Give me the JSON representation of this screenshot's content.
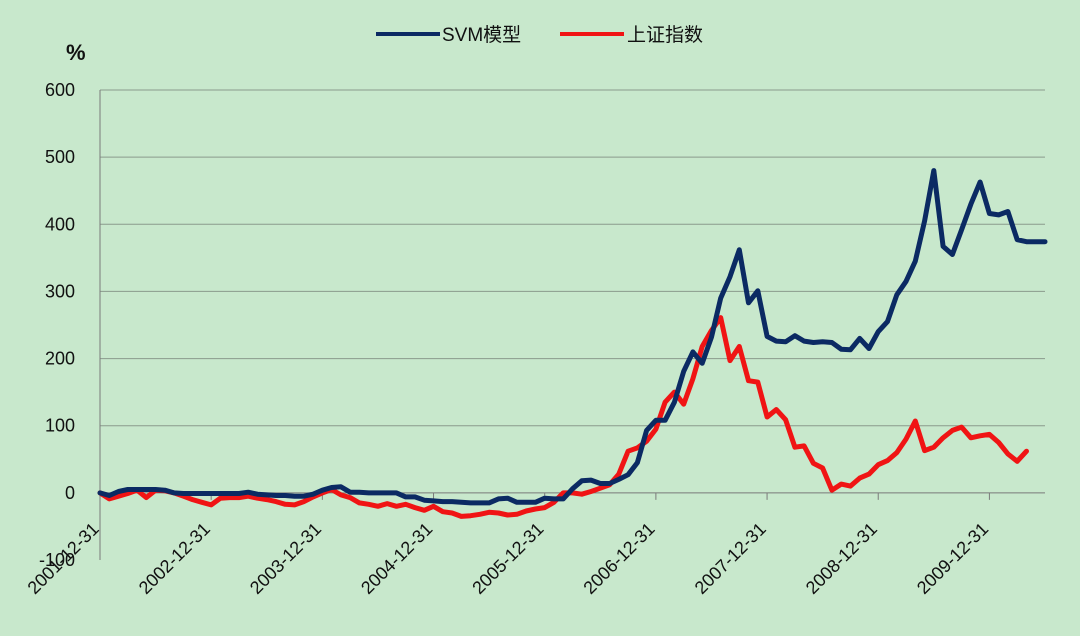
{
  "chart_data": {
    "type": "line",
    "unit_label": "%",
    "ylim": [
      -100,
      600
    ],
    "yticks": [
      -100,
      0,
      100,
      200,
      300,
      400,
      500,
      600
    ],
    "ytick_labels": [
      "-100",
      "0",
      "100",
      "200",
      "300",
      "400",
      "500",
      "600"
    ],
    "x_label_interval": 12,
    "x_labels": [
      "2001-12-31",
      "2002-12-31",
      "2003-12-31",
      "2004-12-31",
      "2005-12-31",
      "2006-12-31",
      "2007-12-31",
      "2008-12-31",
      "2009-12-31"
    ],
    "grid": true,
    "legend_position": "top-center",
    "colors": {
      "background": "#c8e8cc",
      "gridline": "#8a9a8c",
      "axis": "#7a7a7a"
    },
    "series": [
      {
        "name": "SVM模型",
        "color": "#0b2a63",
        "values": [
          0,
          -4,
          2,
          5,
          5,
          5,
          5,
          4,
          0,
          -1,
          -1,
          -1,
          -1,
          -1,
          -1,
          -1,
          1,
          -2,
          -3,
          -4,
          -4,
          -5,
          -5,
          -2,
          4,
          8,
          9,
          1,
          1,
          0,
          0,
          0,
          0,
          -6,
          -6,
          -11,
          -12,
          -13,
          -13,
          -14,
          -15,
          -15,
          -15,
          -9,
          -8,
          -14,
          -14,
          -14,
          -8,
          -9,
          -9,
          6,
          18,
          19,
          14,
          14,
          20,
          27,
          45,
          93,
          108,
          108,
          135,
          181,
          210,
          193,
          232,
          290,
          322,
          362,
          283,
          301,
          233,
          226,
          225,
          234,
          226,
          224,
          225,
          224,
          214,
          213,
          230,
          215,
          240,
          255,
          295,
          315,
          345,
          405,
          480,
          367,
          355,
          392,
          430,
          463,
          416,
          414,
          419,
          377,
          374,
          374,
          374
        ]
      },
      {
        "name": "上证指数",
        "color": "#f01414",
        "values": [
          0,
          -9,
          -5,
          -1,
          4,
          -7,
          4,
          3,
          0,
          -5,
          -10,
          -14,
          -18,
          -8,
          -7,
          -7,
          -5,
          -8,
          -10,
          -13,
          -17,
          -18,
          -13,
          -6,
          0,
          5,
          -3,
          -7,
          -15,
          -17,
          -20,
          -16,
          -20,
          -17,
          -22,
          -26,
          -20,
          -28,
          -30,
          -35,
          -34,
          -32,
          -29,
          -30,
          -33,
          -32,
          -27,
          -24,
          -22,
          -14,
          0,
          0,
          -2,
          2,
          7,
          12,
          28,
          62,
          67,
          77,
          95,
          135,
          150,
          132,
          170,
          218,
          242,
          261,
          197,
          218,
          167,
          165,
          113,
          124,
          109,
          68,
          70,
          44,
          37,
          4,
          13,
          10,
          22,
          28,
          42,
          48,
          60,
          80,
          107,
          63,
          68,
          82,
          93,
          98,
          82,
          85,
          87,
          75,
          58,
          47,
          62
        ]
      }
    ]
  }
}
